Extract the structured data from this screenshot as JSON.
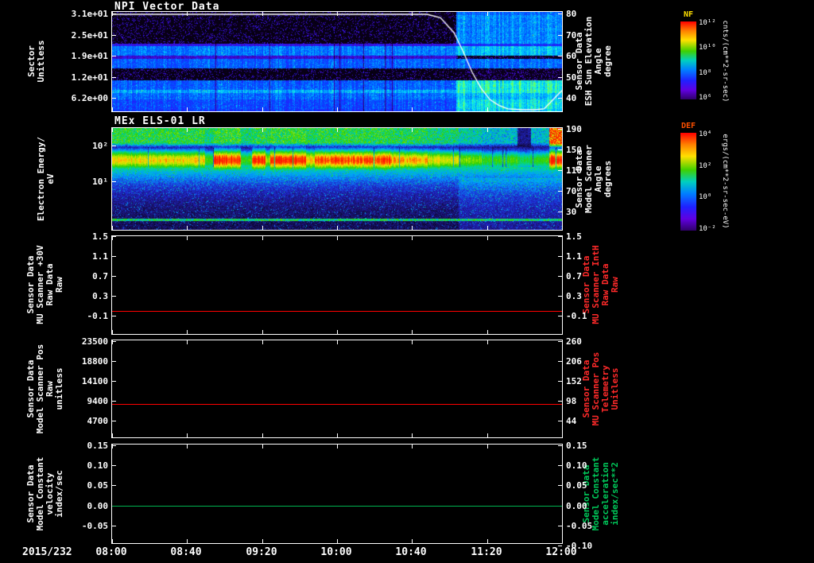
{
  "page": {
    "background": "#000000"
  },
  "xaxis": {
    "date": "2015/232",
    "tick_labels": [
      "08:00",
      "08:40",
      "09:20",
      "10:00",
      "10:40",
      "11:20",
      "12:00"
    ]
  },
  "panels": {
    "npi": {
      "title": "NPI Vector Data",
      "left_label_lines": [
        "Sector",
        "Unitless"
      ],
      "left_ticks": [
        "3.1e+01",
        "2.5e+01",
        "1.9e+01",
        "1.2e+01",
        "6.2e+00"
      ],
      "right_ticks": [
        "80",
        "70",
        "60",
        "50",
        "40"
      ],
      "right_label_lines": [
        "Sensor Data",
        "ESH Sun Elevation",
        "Angle",
        "degree"
      ]
    },
    "els": {
      "title": "MEx ELS-01 LR",
      "left_label_lines": [
        "Electron Energy/",
        "eV"
      ],
      "left_ticks": [
        "10²",
        "10¹"
      ],
      "right_ticks": [
        "190",
        "150",
        "110",
        "70",
        "30"
      ],
      "right_label_lines": [
        "Sensor Data",
        "Model Scanner",
        "Angle",
        "degrees"
      ]
    },
    "mu_raw": {
      "left_label_lines": [
        "Sensor Data",
        "MU Scanner +30V",
        "Raw Data",
        "Raw"
      ],
      "left_ticks": [
        "1.5",
        "1.1",
        "0.7",
        "0.3",
        "-0.1"
      ],
      "right_ticks": [
        "1.5",
        "1.1",
        "0.7",
        "0.3",
        "-0.1"
      ],
      "right_label_lines": [
        "Sensor Data",
        "MU Scanner IntH",
        "Raw Data",
        "Raw"
      ],
      "right_label_color": "#ff2a2a"
    },
    "scanner_pos": {
      "left_label_lines": [
        "Sensor Data",
        "Model Scanner Pos",
        "Raw",
        "unitless"
      ],
      "left_ticks": [
        "23500",
        "18800",
        "14100",
        "9400",
        "4700"
      ],
      "right_ticks": [
        "260",
        "206",
        "152",
        "98",
        "44"
      ],
      "right_label_lines": [
        "Sensor Data",
        "MU Scanner Pos",
        "Telemetry",
        "Unitless"
      ],
      "right_label_color": "#ff2a2a"
    },
    "model_const": {
      "left_label_lines": [
        "Sensor Data",
        "Model Constant",
        "velocity",
        "index/sec"
      ],
      "left_ticks": [
        "0.15",
        "0.10",
        "0.05",
        "0.00",
        "-0.05"
      ],
      "right_ticks": [
        "0.15",
        "0.10",
        "0.05",
        "0.00",
        "-0.05",
        "-0.10"
      ],
      "right_label_lines": [
        "Sensor Data",
        "Model Constant",
        "acceleration",
        "index/sec**2"
      ],
      "right_label_color": "#00c85a"
    }
  },
  "colorbars": {
    "nf": {
      "label": "NF",
      "label_color": "#ffe000",
      "ticks": [
        "10¹²",
        "10¹⁰",
        "10⁸",
        "10⁶"
      ],
      "unit": "cnts/(cm**2-sr-sec)"
    },
    "def": {
      "label": "DEF",
      "label_color": "#ff5000",
      "ticks": [
        "10⁴",
        "10²",
        "10⁰",
        "10⁻²"
      ],
      "unit": "ergs/(cm**2-sr-sec-eV)"
    }
  },
  "chart_data": [
    {
      "type": "heatmap",
      "id": "npi",
      "title": "NPI Vector Data",
      "xlabel": "Time, 2015/232 08:00 to 12:00",
      "ylabel": "Sector Unitless",
      "y_ticks": [
        31,
        25,
        19,
        12,
        6.2
      ],
      "colorbar": {
        "label": "NF",
        "unit": "cnts/(cm**2-sr-sec)"
      },
      "features": "32-sector count-rate spectrogram: violet speckle in upper sectors, steady blue bands mid/lower sectors, black dropout rows near sectors 14 and 18-20; counts brighten to cyan/green after ~11:05",
      "overlay_line": {
        "name": "ESH Sun Elevation Angle",
        "units": "degree",
        "color": "#ffffff",
        "axis_ticks": [
          80,
          70,
          60,
          50,
          40
        ],
        "points": [
          [
            0,
            80
          ],
          [
            0.7,
            80
          ],
          [
            0.73,
            78.5
          ],
          [
            0.76,
            72
          ],
          [
            0.78,
            64
          ],
          [
            0.8,
            55
          ],
          [
            0.82,
            48
          ],
          [
            0.84,
            43
          ],
          [
            0.86,
            40.5
          ],
          [
            0.88,
            39
          ],
          [
            0.91,
            38.3
          ],
          [
            0.94,
            38.2
          ],
          [
            0.96,
            39
          ],
          [
            0.975,
            42
          ],
          [
            1,
            47
          ]
        ]
      },
      "render": {
        "seed": 1337,
        "phase_change_frac": 0.765,
        "colormap": [
          [
            0,
            "#000000"
          ],
          [
            0.07,
            "#0d0022"
          ],
          [
            0.16,
            "#3a00a0"
          ],
          [
            0.26,
            "#4010e0"
          ],
          [
            0.38,
            "#2020ff"
          ],
          [
            0.5,
            "#0050ff"
          ],
          [
            0.62,
            "#0090ff"
          ],
          [
            0.74,
            "#00ccff"
          ],
          [
            0.86,
            "#20ffd0"
          ],
          [
            1,
            "#80ff40"
          ]
        ],
        "rows_early": [
          0.06,
          0.1,
          0.1,
          0.1,
          0.1,
          0.1,
          0.1,
          0.1,
          0.1,
          0.1,
          0.3,
          0.58,
          0.58,
          0.58,
          0.25,
          0.52,
          0.52,
          0.52,
          0.03,
          0.03,
          0.03,
          0.1,
          0.52,
          0.52,
          0.52,
          0.68,
          0.55,
          0.55,
          0.48,
          0.48,
          0.48,
          0.45
        ],
        "rows_late": [
          0.55,
          0.62,
          0.6,
          0.62,
          0.6,
          0.62,
          0.6,
          0.62,
          0.6,
          0.62,
          0.4,
          0.72,
          0.72,
          0.7,
          0.15,
          0.55,
          0.55,
          0.55,
          0.05,
          0.05,
          0.05,
          0.15,
          0.82,
          0.85,
          0.82,
          0.85,
          0.72,
          0.7,
          0.78,
          0.8,
          0.78,
          0.75
        ]
      }
    },
    {
      "type": "heatmap",
      "id": "els",
      "title": "MEx ELS-01 LR",
      "ylabel": "Electron Energy / eV",
      "y_scale": "log",
      "y_ticks": [
        100,
        10
      ],
      "colorbar": {
        "label": "DEF",
        "unit": "ergs/(cm**2-sr-sec-eV)"
      },
      "features": "Intense 15-100 eV electron flux band: yellow 08:00-08:50, saturated red bursts 08:55-10:30, orange-yellow to 11:00, weaker green 11:05-11:50 with dark dropout near 11:40, strong red at 12:00; dark blue low flux at lowest energies",
      "render": {
        "seed": 77,
        "band_center": 40,
        "band_sigma": 13,
        "colormap": [
          [
            0,
            "#000008"
          ],
          [
            0.08,
            "#181060"
          ],
          [
            0.18,
            "#2028d0"
          ],
          [
            0.3,
            "#00a0ff"
          ],
          [
            0.42,
            "#00d890"
          ],
          [
            0.55,
            "#30d000"
          ],
          [
            0.68,
            "#a8e800"
          ],
          [
            0.78,
            "#ffd800"
          ],
          [
            0.88,
            "#ff7000"
          ],
          [
            1,
            "#ff1800"
          ]
        ],
        "segments": [
          [
            0,
            0.205,
            0.78,
            0.5
          ],
          [
            0.205,
            0.225,
            0.55,
            0.45
          ],
          [
            0.225,
            0.285,
            1,
            0.52
          ],
          [
            0.285,
            0.31,
            0.55,
            0.45
          ],
          [
            0.31,
            0.34,
            1,
            0.5
          ],
          [
            0.34,
            0.35,
            0.7,
            0.48
          ],
          [
            0.35,
            0.43,
            1,
            0.52
          ],
          [
            0.43,
            0.45,
            0.8,
            0.48
          ],
          [
            0.45,
            0.62,
            0.95,
            0.5
          ],
          [
            0.62,
            0.7,
            0.85,
            0.48
          ],
          [
            0.7,
            0.77,
            0.75,
            0.45
          ],
          [
            0.77,
            0.82,
            0.62,
            0.4
          ],
          [
            0.82,
            0.9,
            0.55,
            0.35
          ],
          [
            0.9,
            0.93,
            0.5,
            0.12
          ],
          [
            0.93,
            0.97,
            0.55,
            0.35
          ],
          [
            0.97,
            1,
            1,
            0.95
          ]
        ]
      }
    },
    {
      "type": "line",
      "id": "mu_raw",
      "name": "MU Scanner +30V Raw Data Raw / MU Scanner IntH Raw Data Raw",
      "color": "#ff0000",
      "constant_value": 0.0,
      "left_axis_ticks": [
        1.5,
        1.1,
        0.7,
        0.3,
        -0.1
      ],
      "right_axis_ticks": [
        1.5,
        1.1,
        0.7,
        0.3,
        -0.1
      ],
      "render": {
        "y_frac": 0.76
      }
    },
    {
      "type": "line",
      "id": "scanner_pos",
      "name": "Model Scanner Pos Raw / MU Scanner Pos Telemetry",
      "color": "#ff0000",
      "constant_value": 8700,
      "right_axis_value": 90,
      "left_axis_ticks": [
        23500,
        18800,
        14100,
        9400,
        4700
      ],
      "right_axis_ticks": [
        260,
        206,
        152,
        98,
        44
      ],
      "render": {
        "y_frac": 0.651
      }
    },
    {
      "type": "line",
      "id": "model_const",
      "name": "Model Constant velocity / Model Constant acceleration",
      "color": "#00b450",
      "constant_value": 0.0,
      "left_axis_ticks": [
        0.15,
        0.1,
        0.05,
        0.0,
        -0.05
      ],
      "right_axis_ticks": [
        0.15,
        0.1,
        0.05,
        0.0,
        -0.05,
        -0.1
      ],
      "render": {
        "y_frac": 0.616
      }
    }
  ]
}
